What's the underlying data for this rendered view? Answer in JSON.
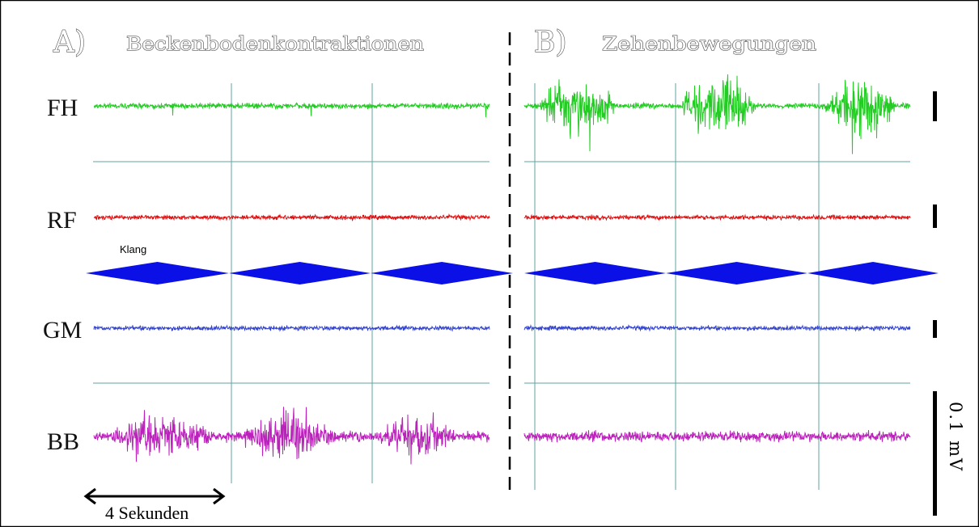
{
  "chart_data": {
    "type": "line",
    "panels": [
      {
        "id": "A",
        "letter": "A)",
        "title": "Beckenbodenkontraktionen",
        "active_channel": "BB"
      },
      {
        "id": "B",
        "letter": "B)",
        "title": "Zehenbewegungen",
        "active_channel": "FH"
      }
    ],
    "channels": [
      {
        "label": "FH",
        "color": "#22cc22"
      },
      {
        "label": "RF",
        "color": "#dd1111"
      },
      {
        "label": "GM",
        "color": "#3344cc"
      },
      {
        "label": "BB",
        "color": "#bb22bb"
      }
    ],
    "stimulus": {
      "label": "Klang",
      "color": "#0a10e6",
      "shape": "diamond",
      "count_per_panel": 3
    },
    "time_scale_label": "4 Sekunden",
    "amplitude_scale_label": "0.1 mV",
    "grid_color": "#5fa6a0"
  }
}
